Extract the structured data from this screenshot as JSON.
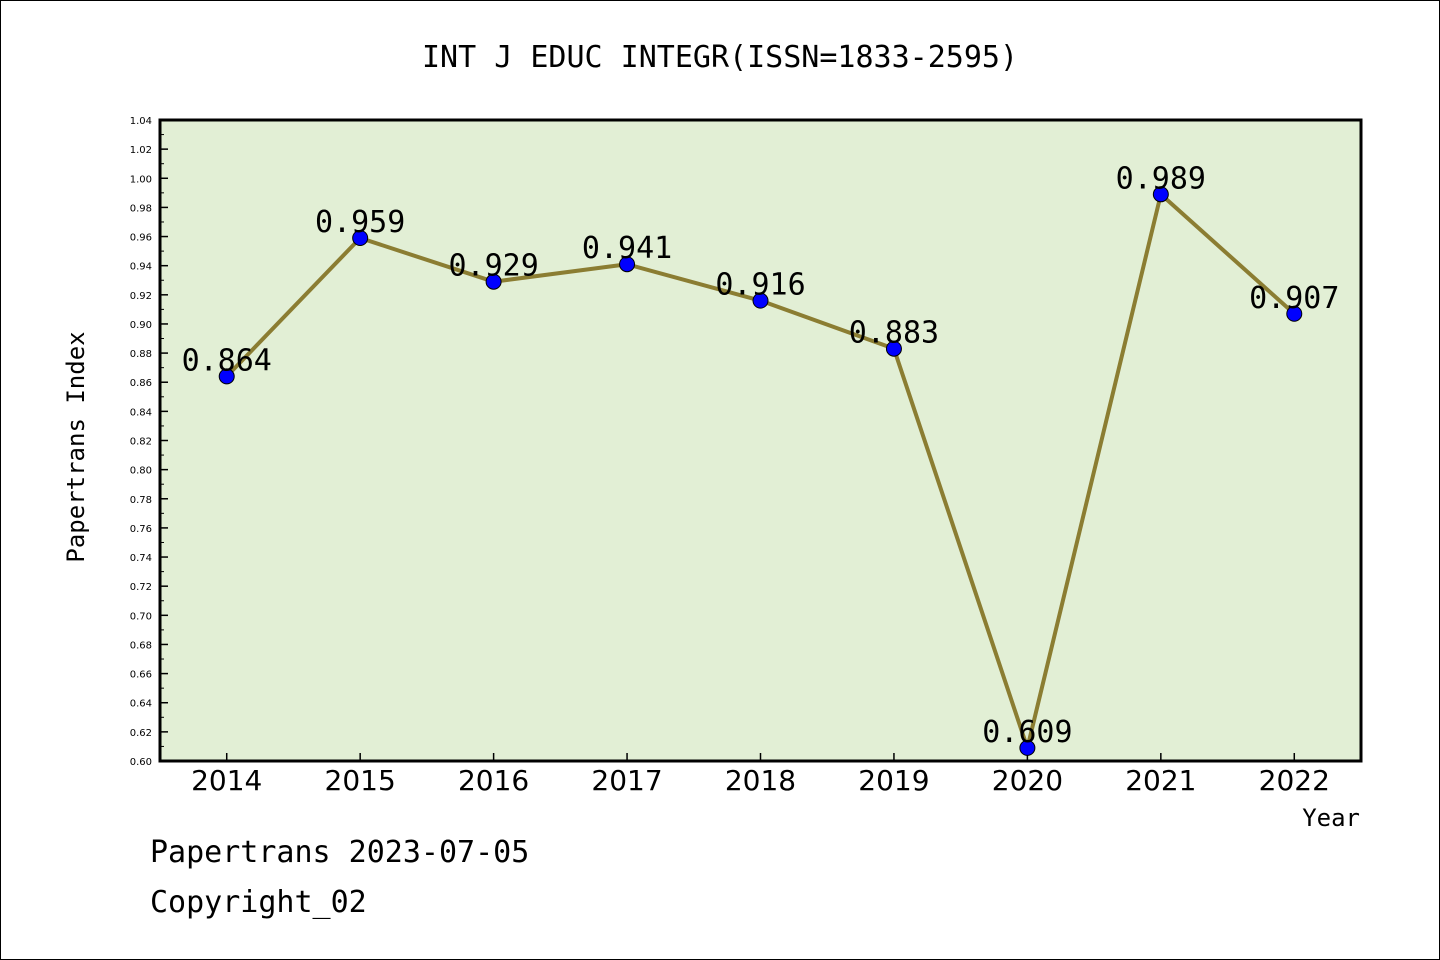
{
  "chart_data": {
    "type": "line",
    "title": "INT J EDUC INTEGR(ISSN=1833-2595)",
    "xlabel": "Year",
    "ylabel": "Papertrans Index",
    "x": [
      "2014",
      "2015",
      "2016",
      "2017",
      "2018",
      "2019",
      "2020",
      "2021",
      "2022"
    ],
    "series": [
      {
        "values": [
          0.864,
          0.959,
          0.929,
          0.941,
          0.916,
          0.883,
          0.609,
          0.989,
          0.907
        ]
      }
    ],
    "data_labels": [
      "0.864",
      "0.959",
      "0.929",
      "0.941",
      "0.916",
      "0.883",
      "0.609",
      "0.989",
      "0.907"
    ],
    "ylim": [
      0.6,
      1.04
    ],
    "ytick_step": 0.02,
    "grid": false,
    "legend": "none",
    "colors": {
      "plot_background": "#e2efd5",
      "line": "#8b7d32",
      "marker": "#0000ff"
    }
  },
  "footer": {
    "line1": "Papertrans 2023-07-05",
    "line2": "Copyright_02"
  }
}
